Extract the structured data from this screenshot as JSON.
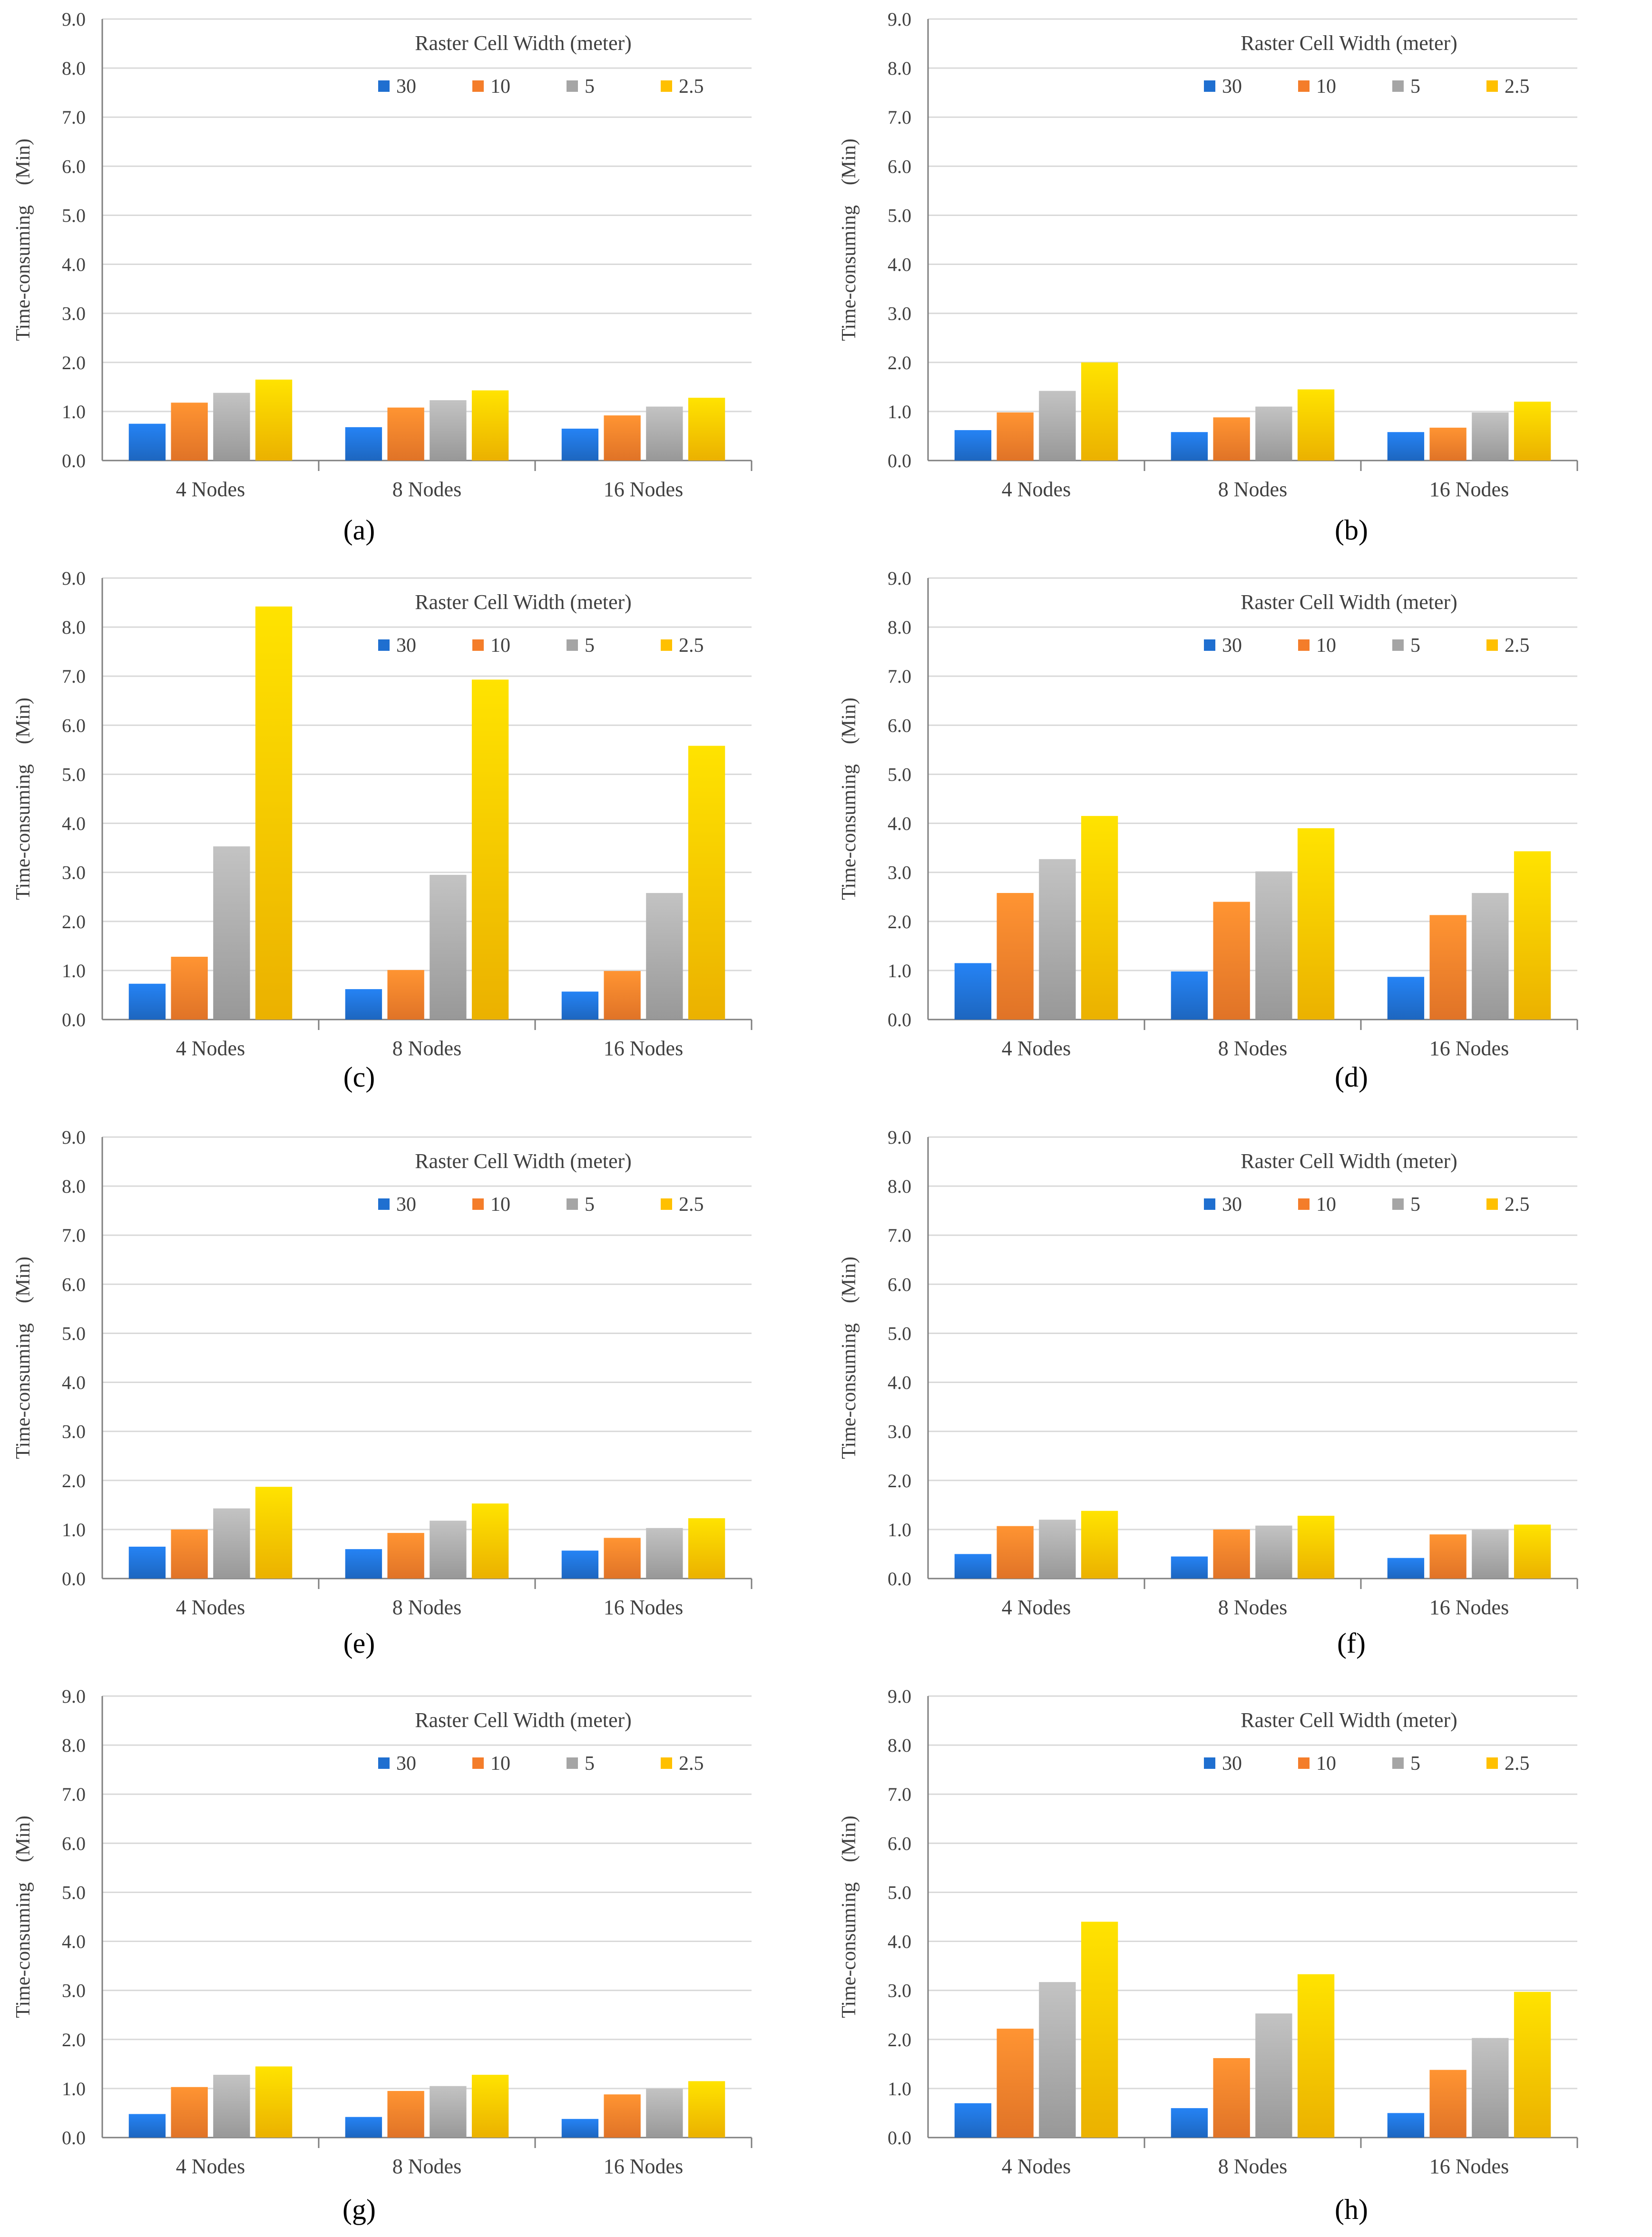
{
  "colors": {
    "30": "#1f6fd0",
    "10": "#f47d2a",
    "5": "#a5a5a5",
    "2.5": "#ffc000"
  },
  "charts": [
    {
      "label": "(a)",
      "chart_data": {
        "type": "bar",
        "title": "",
        "legend_title": "Raster Cell Width (meter)",
        "legend_position": "top-right",
        "categories": [
          "4 Nodes",
          "8 Nodes",
          "16 Nodes"
        ],
        "ylabel": "Time-consuming　(Min)",
        "xlabel": "",
        "ylim": [
          0,
          9
        ],
        "yticks": [
          "0.0",
          "1.0",
          "2.0",
          "3.0",
          "4.0",
          "5.0",
          "6.0",
          "7.0",
          "8.0",
          "9.0"
        ],
        "grid": true,
        "series": [
          {
            "name": "30",
            "values": [
              0.75,
              0.68,
              0.65
            ]
          },
          {
            "name": "10",
            "values": [
              1.18,
              1.08,
              0.92
            ]
          },
          {
            "name": "5",
            "values": [
              1.38,
              1.23,
              1.1
            ]
          },
          {
            "name": "2.5",
            "values": [
              1.65,
              1.43,
              1.28
            ]
          }
        ]
      }
    },
    {
      "label": "(b)",
      "chart_data": {
        "type": "bar",
        "title": "",
        "legend_title": "Raster Cell Width (meter)",
        "legend_position": "top-right",
        "categories": [
          "4 Nodes",
          "8 Nodes",
          "16 Nodes"
        ],
        "ylabel": "Time-consuming　(Min)",
        "xlabel": "",
        "ylim": [
          0,
          9
        ],
        "yticks": [
          "0.0",
          "1.0",
          "2.0",
          "3.0",
          "4.0",
          "5.0",
          "6.0",
          "7.0",
          "8.0",
          "9.0"
        ],
        "grid": true,
        "series": [
          {
            "name": "30",
            "values": [
              0.62,
              0.58,
              0.58
            ]
          },
          {
            "name": "10",
            "values": [
              0.98,
              0.88,
              0.67
            ]
          },
          {
            "name": "5",
            "values": [
              1.42,
              1.1,
              0.98
            ]
          },
          {
            "name": "2.5",
            "values": [
              2.0,
              1.45,
              1.2
            ]
          }
        ]
      }
    },
    {
      "label": "(c)",
      "chart_data": {
        "type": "bar",
        "title": "",
        "legend_title": "Raster Cell Width (meter)",
        "legend_position": "top-right",
        "categories": [
          "4 Nodes",
          "8 Nodes",
          "16 Nodes"
        ],
        "ylabel": "Time-consuming　(Min)",
        "xlabel": "",
        "ylim": [
          0,
          9
        ],
        "yticks": [
          "0.0",
          "1.0",
          "2.0",
          "3.0",
          "4.0",
          "5.0",
          "6.0",
          "7.0",
          "8.0",
          "9.0"
        ],
        "grid": true,
        "series": [
          {
            "name": "30",
            "values": [
              0.73,
              0.62,
              0.57
            ]
          },
          {
            "name": "10",
            "values": [
              1.28,
              1.01,
              0.99
            ]
          },
          {
            "name": "5",
            "values": [
              3.53,
              2.95,
              2.58
            ]
          },
          {
            "name": "2.5",
            "values": [
              8.42,
              6.93,
              5.58
            ]
          }
        ]
      }
    },
    {
      "label": "(d)",
      "chart_data": {
        "type": "bar",
        "title": "",
        "legend_title": "Raster Cell Width (meter)",
        "legend_position": "top-right",
        "categories": [
          "4 Nodes",
          "8 Nodes",
          "16 Nodes"
        ],
        "ylabel": "Time-consuming　(Min)",
        "xlabel": "",
        "ylim": [
          0,
          9
        ],
        "yticks": [
          "0.0",
          "1.0",
          "2.0",
          "3.0",
          "4.0",
          "5.0",
          "6.0",
          "7.0",
          "8.0",
          "9.0"
        ],
        "grid": true,
        "series": [
          {
            "name": "30",
            "values": [
              1.15,
              0.98,
              0.87
            ]
          },
          {
            "name": "10",
            "values": [
              2.58,
              2.4,
              2.13
            ]
          },
          {
            "name": "5",
            "values": [
              3.27,
              3.02,
              2.58
            ]
          },
          {
            "name": "2.5",
            "values": [
              4.15,
              3.9,
              3.43
            ]
          }
        ]
      }
    },
    {
      "label": "(e)",
      "chart_data": {
        "type": "bar",
        "title": "",
        "legend_title": "Raster Cell Width (meter)",
        "legend_position": "top-right",
        "categories": [
          "4 Nodes",
          "8 Nodes",
          "16 Nodes"
        ],
        "ylabel": "Time-consuming　(Min)",
        "xlabel": "",
        "ylim": [
          0,
          9
        ],
        "yticks": [
          "0.0",
          "1.0",
          "2.0",
          "3.0",
          "4.0",
          "5.0",
          "6.0",
          "7.0",
          "8.0",
          "9.0"
        ],
        "grid": true,
        "series": [
          {
            "name": "30",
            "values": [
              0.65,
              0.6,
              0.57
            ]
          },
          {
            "name": "10",
            "values": [
              1.0,
              0.93,
              0.83
            ]
          },
          {
            "name": "5",
            "values": [
              1.43,
              1.18,
              1.03
            ]
          },
          {
            "name": "2.5",
            "values": [
              1.87,
              1.53,
              1.23
            ]
          }
        ]
      }
    },
    {
      "label": "(f)",
      "chart_data": {
        "type": "bar",
        "title": "",
        "legend_title": "Raster Cell Width (meter)",
        "legend_position": "top-right",
        "categories": [
          "4 Nodes",
          "8 Nodes",
          "16 Nodes"
        ],
        "ylabel": "Time-consuming　(Min)",
        "xlabel": "",
        "ylim": [
          0,
          9
        ],
        "yticks": [
          "0.0",
          "1.0",
          "2.0",
          "3.0",
          "4.0",
          "5.0",
          "6.0",
          "7.0",
          "8.0",
          "9.0"
        ],
        "grid": true,
        "series": [
          {
            "name": "30",
            "values": [
              0.5,
              0.45,
              0.42
            ]
          },
          {
            "name": "10",
            "values": [
              1.07,
              1.0,
              0.9
            ]
          },
          {
            "name": "5",
            "values": [
              1.2,
              1.08,
              1.0
            ]
          },
          {
            "name": "2.5",
            "values": [
              1.38,
              1.28,
              1.1
            ]
          }
        ]
      }
    },
    {
      "label": "(g)",
      "chart_data": {
        "type": "bar",
        "title": "",
        "legend_title": "Raster Cell Width (meter)",
        "legend_position": "top-right",
        "categories": [
          "4 Nodes",
          "8 Nodes",
          "16 Nodes"
        ],
        "ylabel": "Time-consuming　(Min)",
        "xlabel": "",
        "ylim": [
          0,
          9
        ],
        "yticks": [
          "0.0",
          "1.0",
          "2.0",
          "3.0",
          "4.0",
          "5.0",
          "6.0",
          "7.0",
          "8.0",
          "9.0"
        ],
        "grid": true,
        "series": [
          {
            "name": "30",
            "values": [
              0.48,
              0.42,
              0.38
            ]
          },
          {
            "name": "10",
            "values": [
              1.03,
              0.95,
              0.88
            ]
          },
          {
            "name": "5",
            "values": [
              1.28,
              1.05,
              1.0
            ]
          },
          {
            "name": "2.5",
            "values": [
              1.45,
              1.28,
              1.15
            ]
          }
        ]
      }
    },
    {
      "label": "(h)",
      "chart_data": {
        "type": "bar",
        "title": "",
        "legend_title": "Raster Cell Width (meter)",
        "legend_position": "top-right",
        "categories": [
          "4 Nodes",
          "8 Nodes",
          "16 Nodes"
        ],
        "ylabel": "Time-consuming　(Min)",
        "xlabel": "",
        "ylim": [
          0,
          9
        ],
        "yticks": [
          "0.0",
          "1.0",
          "2.0",
          "3.0",
          "4.0",
          "5.0",
          "6.0",
          "7.0",
          "8.0",
          "9.0"
        ],
        "grid": true,
        "series": [
          {
            "name": "30",
            "values": [
              0.7,
              0.6,
              0.5
            ]
          },
          {
            "name": "10",
            "values": [
              2.22,
              1.62,
              1.38
            ]
          },
          {
            "name": "5",
            "values": [
              3.17,
              2.53,
              2.03
            ]
          },
          {
            "name": "2.5",
            "values": [
              4.4,
              3.33,
              2.97
            ]
          }
        ]
      }
    }
  ]
}
